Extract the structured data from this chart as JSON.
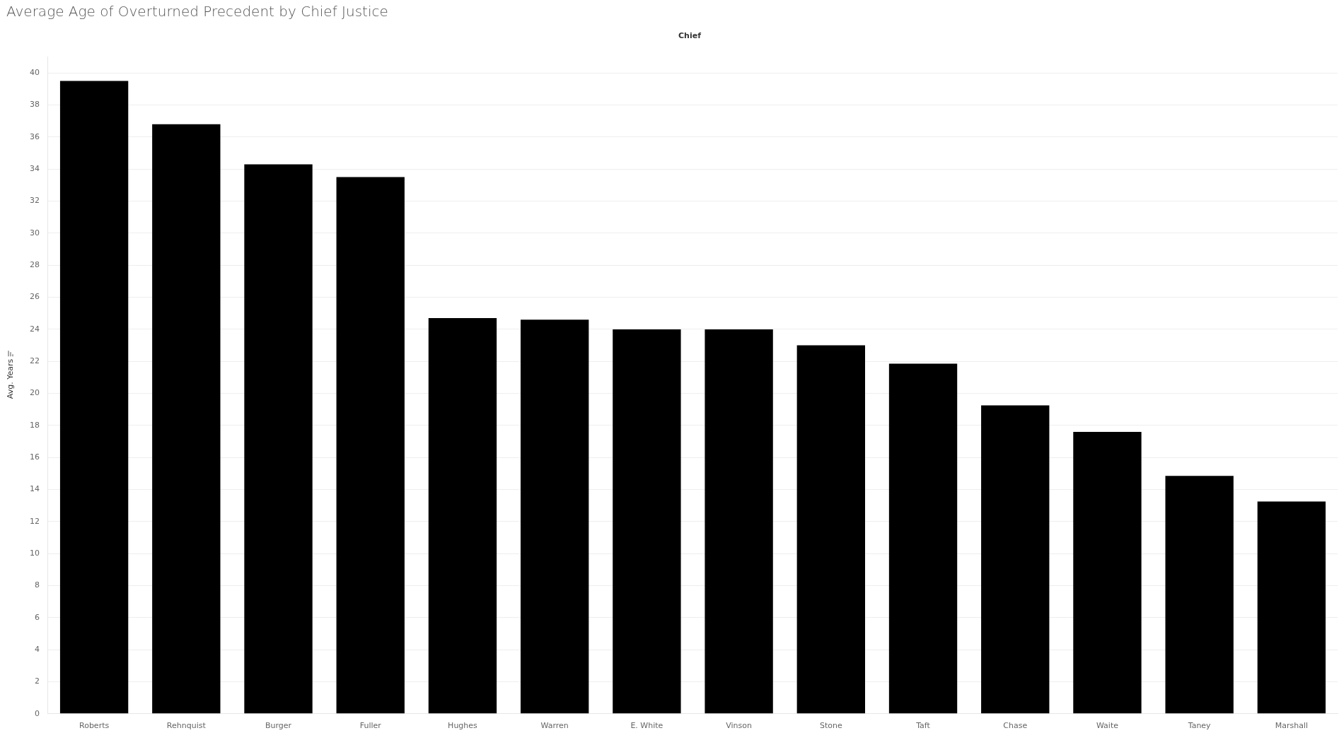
{
  "chart_data": {
    "type": "bar",
    "title": "Average Age of Overturned Precedent by Chief Justice",
    "xlabel": "Chief",
    "ylabel": "Avg. Years",
    "categories": [
      "Roberts",
      "Rehnquist",
      "Burger",
      "Fuller",
      "Hughes",
      "Warren",
      "E. White",
      "Vinson",
      "Stone",
      "Taft",
      "Chase",
      "Waite",
      "Taney",
      "Marshall"
    ],
    "values": [
      39.5,
      36.8,
      34.3,
      33.5,
      24.7,
      24.6,
      24.0,
      24.0,
      23.0,
      21.85,
      19.25,
      17.6,
      14.85,
      13.25
    ],
    "color": "#000000",
    "ylim": [
      0,
      41
    ],
    "yticks": [
      0,
      2,
      4,
      6,
      8,
      10,
      12,
      14,
      16,
      18,
      20,
      22,
      24,
      26,
      28,
      30,
      32,
      34,
      36,
      38,
      40
    ],
    "grid": "y",
    "legend": false
  }
}
